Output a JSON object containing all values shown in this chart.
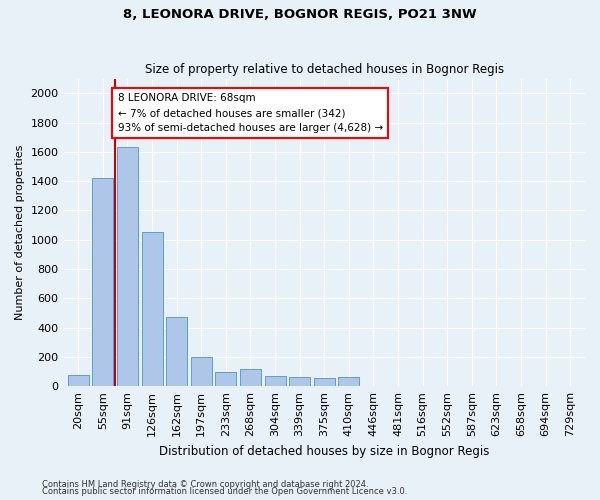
{
  "title": "8, LEONORA DRIVE, BOGNOR REGIS, PO21 3NW",
  "subtitle": "Size of property relative to detached houses in Bognor Regis",
  "xlabel": "Distribution of detached houses by size in Bognor Regis",
  "ylabel": "Number of detached properties",
  "footnote1": "Contains HM Land Registry data © Crown copyright and database right 2024.",
  "footnote2": "Contains public sector information licensed under the Open Government Licence v3.0.",
  "bin_labels": [
    "20sqm",
    "55sqm",
    "91sqm",
    "126sqm",
    "162sqm",
    "197sqm",
    "233sqm",
    "268sqm",
    "304sqm",
    "339sqm",
    "375sqm",
    "410sqm",
    "446sqm",
    "481sqm",
    "516sqm",
    "552sqm",
    "587sqm",
    "623sqm",
    "658sqm",
    "694sqm",
    "729sqm"
  ],
  "bar_values": [
    75,
    1420,
    1630,
    1050,
    470,
    200,
    100,
    120,
    70,
    65,
    55,
    60,
    0,
    0,
    0,
    0,
    0,
    0,
    0,
    0,
    0
  ],
  "bar_color": "#aec6e8",
  "bar_edge_color": "#5a9fd4",
  "annotation_text": "8 LEONORA DRIVE: 68sqm\n← 7% of detached houses are smaller (342)\n93% of semi-detached houses are larger (4,628) →",
  "annotation_box_color": "white",
  "annotation_box_edge_color": "red",
  "ylim": [
    0,
    2100
  ],
  "yticks": [
    0,
    200,
    400,
    600,
    800,
    1000,
    1200,
    1400,
    1600,
    1800,
    2000
  ],
  "bg_color": "#e8f0f8",
  "plot_bg_color": "#e8f0f8",
  "grid_color": "white",
  "red_line_color": "#cc0000",
  "red_line_x": 1.5
}
